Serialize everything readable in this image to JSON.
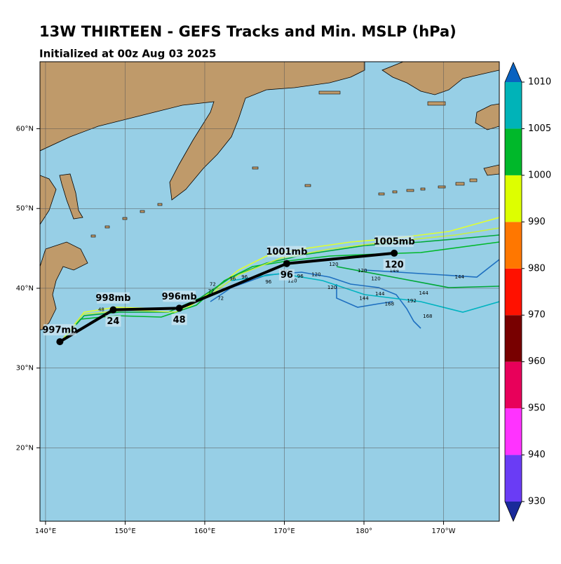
{
  "header": {
    "title": "13W THIRTEEN - GEFS Tracks and Min. MSLP (hPa)",
    "subtitle": "Initialized at 00z Aug 03 2025"
  },
  "map": {
    "lonlim": [
      139.3,
      197
    ],
    "latlim": [
      10.8,
      68.4
    ],
    "lon_ticks": [
      {
        "value": 140,
        "label": "140°E"
      },
      {
        "value": 150,
        "label": "150°E"
      },
      {
        "value": 160,
        "label": "160°E"
      },
      {
        "value": 170,
        "label": "170°E"
      },
      {
        "value": 180,
        "label": "180°"
      },
      {
        "value": 190,
        "label": "170°W"
      }
    ],
    "lat_ticks": [
      {
        "value": 20,
        "label": "20°N"
      },
      {
        "value": 30,
        "label": "30°N"
      },
      {
        "value": 40,
        "label": "40°N"
      },
      {
        "value": 50,
        "label": "50°N"
      },
      {
        "value": 60,
        "label": "60°N"
      }
    ],
    "track": [
      {
        "lon": 141.8,
        "lat": 33.3,
        "label": "997mb"
      },
      {
        "lon": 148.5,
        "lat": 37.3,
        "label": "998mb",
        "hour": "24"
      },
      {
        "lon": 156.8,
        "lat": 37.5,
        "label": "996mb",
        "hour": "48"
      },
      {
        "lon": 170.3,
        "lat": 43.1,
        "label": "1001mb",
        "hour": "96"
      },
      {
        "lon": 183.8,
        "lat": 44.4,
        "label": "1005mb",
        "hour": "120"
      }
    ],
    "member_labels": [
      "48",
      "72",
      "72",
      "72",
      "96",
      "96",
      "96",
      "96",
      "120",
      "120",
      "120",
      "120",
      "120",
      "120",
      "120",
      "144",
      "144",
      "144",
      "144",
      "144",
      "168",
      "168",
      "168",
      "192",
      "192",
      "120"
    ]
  },
  "colorbar": {
    "ticks": [
      930,
      940,
      950,
      960,
      970,
      980,
      990,
      1000,
      1005,
      1010
    ],
    "colors": [
      "#6a3cf5",
      "#ff33ff",
      "#e8005a",
      "#780000",
      "#ff1100",
      "#ff7700",
      "#ddff00",
      "#00b82a",
      "#00b3b8"
    ],
    "under": "#1a2a9a",
    "over": "#0a62c0"
  }
}
